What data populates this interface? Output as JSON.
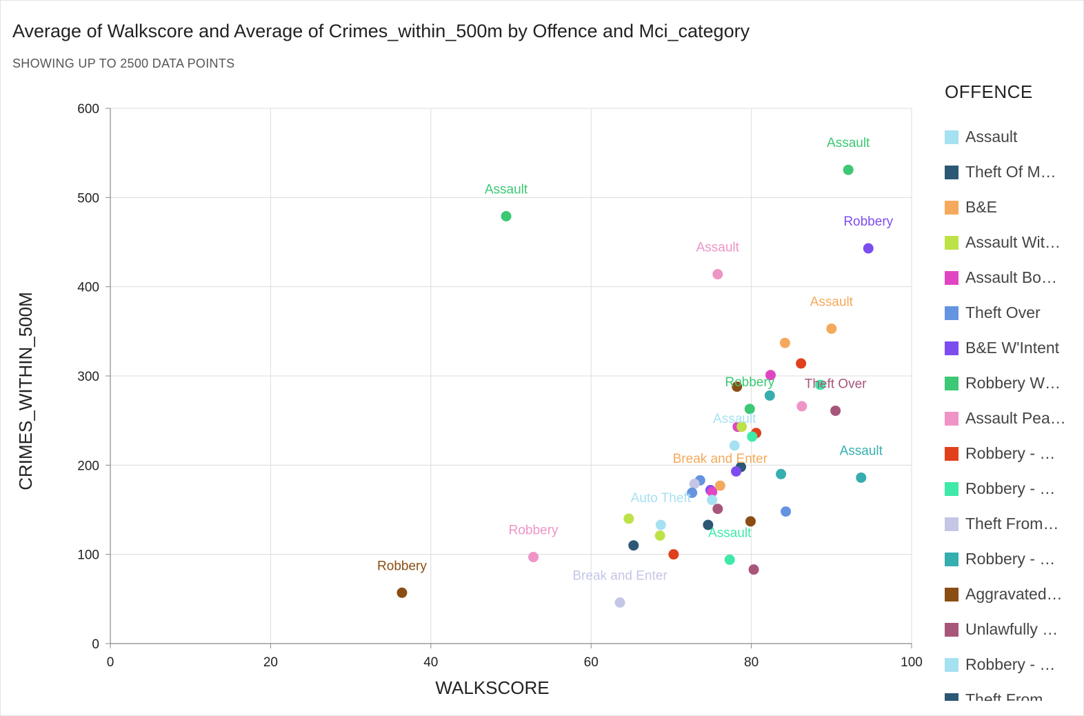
{
  "title": "Average of Walkscore and Average of Crimes_within_500m by Offence and Mci_category",
  "subtitle": "SHOWING UP TO 2500 DATA POINTS",
  "legend": {
    "title": "OFFENCE",
    "items": [
      {
        "label": "Assault",
        "color": "#a6e1f1"
      },
      {
        "label": "Theft Of M…",
        "color": "#2c5775"
      },
      {
        "label": "B&E",
        "color": "#f5a95c"
      },
      {
        "label": "Assault Wit…",
        "color": "#bde248"
      },
      {
        "label": "Assault Bo…",
        "color": "#e046c2"
      },
      {
        "label": "Theft Over",
        "color": "#6493e0"
      },
      {
        "label": "B&E W'Intent",
        "color": "#7d4df0"
      },
      {
        "label": "Robbery W…",
        "color": "#3cc874"
      },
      {
        "label": "Assault Pea…",
        "color": "#ee94c6"
      },
      {
        "label": "Robbery - …",
        "color": "#e0401c"
      },
      {
        "label": "Robbery - …",
        "color": "#3fe9a8"
      },
      {
        "label": "Theft From…",
        "color": "#c4c6e6"
      },
      {
        "label": "Robbery - …",
        "color": "#36adaf"
      },
      {
        "label": "Aggravated…",
        "color": "#8a4d14"
      },
      {
        "label": "Unlawfully …",
        "color": "#a8557a"
      },
      {
        "label": "Robbery - …",
        "color": "#a6e1f1"
      },
      {
        "label": "Theft From…",
        "color": "#2c5775"
      }
    ]
  },
  "chart_data": {
    "type": "scatter",
    "xlabel": "WALKSCORE",
    "ylabel": "CRIMES_WITHIN_500M",
    "xlim": [
      0,
      100
    ],
    "ylim": [
      0,
      600
    ],
    "x_ticks": [
      "0",
      "20",
      "40",
      "60",
      "80",
      "100"
    ],
    "y_ticks": [
      "0",
      "100",
      "200",
      "300",
      "400",
      "500",
      "600"
    ],
    "grid": true,
    "legend_position": "right",
    "points": [
      {
        "x": 49.4,
        "y": 479,
        "color": "#3cc874",
        "label": "Assault"
      },
      {
        "x": 92.1,
        "y": 531,
        "color": "#3cc874",
        "label": "Assault"
      },
      {
        "x": 94.6,
        "y": 443,
        "color": "#7d4df0",
        "label": "Robbery"
      },
      {
        "x": 75.8,
        "y": 414,
        "color": "#ee94c6",
        "label": "Assault"
      },
      {
        "x": 90.0,
        "y": 353,
        "color": "#f5a95c",
        "label": "Assault"
      },
      {
        "x": 84.2,
        "y": 337,
        "color": "#f5a95c"
      },
      {
        "x": 86.2,
        "y": 314,
        "color": "#e0401c"
      },
      {
        "x": 82.4,
        "y": 301,
        "color": "#e046c2"
      },
      {
        "x": 88.6,
        "y": 290,
        "color": "#3fe9a8"
      },
      {
        "x": 78.2,
        "y": 288,
        "color": "#8a4d14"
      },
      {
        "x": 82.3,
        "y": 278,
        "color": "#36adaf"
      },
      {
        "x": 86.3,
        "y": 266,
        "color": "#ee94c6"
      },
      {
        "x": 79.8,
        "y": 263,
        "color": "#3cc874",
        "label": "Robbery"
      },
      {
        "x": 90.5,
        "y": 261,
        "color": "#a8557a",
        "label": "Theft Over"
      },
      {
        "x": 78.3,
        "y": 243,
        "color": "#e046c2"
      },
      {
        "x": 78.8,
        "y": 243,
        "color": "#bde248"
      },
      {
        "x": 80.6,
        "y": 236,
        "color": "#e0401c"
      },
      {
        "x": 80.1,
        "y": 232,
        "color": "#3fe9a8"
      },
      {
        "x": 77.9,
        "y": 222,
        "color": "#a6e1f1",
        "label": "Assault"
      },
      {
        "x": 93.7,
        "y": 186,
        "color": "#36adaf",
        "label": "Assault"
      },
      {
        "x": 78.7,
        "y": 198,
        "color": "#2c5775"
      },
      {
        "x": 78.1,
        "y": 193,
        "color": "#7d4df0"
      },
      {
        "x": 83.7,
        "y": 190,
        "color": "#36adaf"
      },
      {
        "x": 73.6,
        "y": 183,
        "color": "#6493e0"
      },
      {
        "x": 72.9,
        "y": 179,
        "color": "#c4c6e6"
      },
      {
        "x": 76.1,
        "y": 177,
        "color": "#f5a95c",
        "label": "Break and Enter"
      },
      {
        "x": 74.9,
        "y": 172,
        "color": "#7d4df0"
      },
      {
        "x": 75.1,
        "y": 170,
        "color": "#e046c2"
      },
      {
        "x": 72.6,
        "y": 169,
        "color": "#6493e0"
      },
      {
        "x": 75.1,
        "y": 161,
        "color": "#a6e1f1"
      },
      {
        "x": 75.8,
        "y": 151,
        "color": "#a8557a"
      },
      {
        "x": 84.3,
        "y": 148,
        "color": "#6493e0"
      },
      {
        "x": 64.7,
        "y": 140,
        "color": "#bde248"
      },
      {
        "x": 79.9,
        "y": 137,
        "color": "#8a4d14"
      },
      {
        "x": 74.6,
        "y": 133,
        "color": "#2c5775"
      },
      {
        "x": 68.7,
        "y": 133,
        "color": "#a6e1f1",
        "label": "Auto Theft"
      },
      {
        "x": 68.6,
        "y": 121,
        "color": "#bde248"
      },
      {
        "x": 65.3,
        "y": 110,
        "color": "#2c5775"
      },
      {
        "x": 70.3,
        "y": 100,
        "color": "#e0401c"
      },
      {
        "x": 77.3,
        "y": 94,
        "color": "#3fe9a8",
        "label": "Assault"
      },
      {
        "x": 80.3,
        "y": 83,
        "color": "#a8557a"
      },
      {
        "x": 52.8,
        "y": 97,
        "color": "#ee94c6",
        "label": "Robbery"
      },
      {
        "x": 63.6,
        "y": 46,
        "color": "#c4c6e6",
        "label": "Break and Enter"
      },
      {
        "x": 36.4,
        "y": 57,
        "color": "#8a4d14",
        "label": "Robbery"
      }
    ]
  }
}
